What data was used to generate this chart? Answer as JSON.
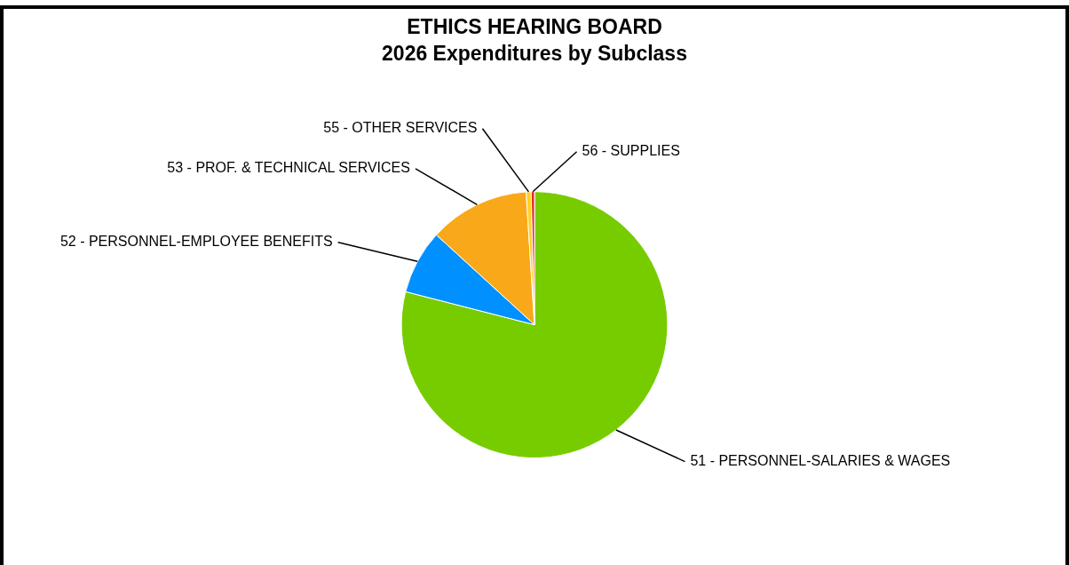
{
  "chart_data": {
    "type": "pie",
    "title": "ETHICS HEARING BOARD",
    "subtitle": "2026 Expenditures by Subclass",
    "categories": [
      "51 - PERSONNEL-SALARIES & WAGES",
      "52 - PERSONNEL-EMPLOYEE BENEFITS",
      "53 - PROF. & TECHNICAL SERVICES",
      "55 - OTHER SERVICES",
      "56 - SUPPLIES"
    ],
    "values": [
      79.0,
      7.8,
      12.2,
      0.6,
      0.4
    ],
    "colors": [
      "#77cc00",
      "#0090ff",
      "#f9a81a",
      "#ffd21f",
      "#e8262f"
    ],
    "legend": false
  }
}
